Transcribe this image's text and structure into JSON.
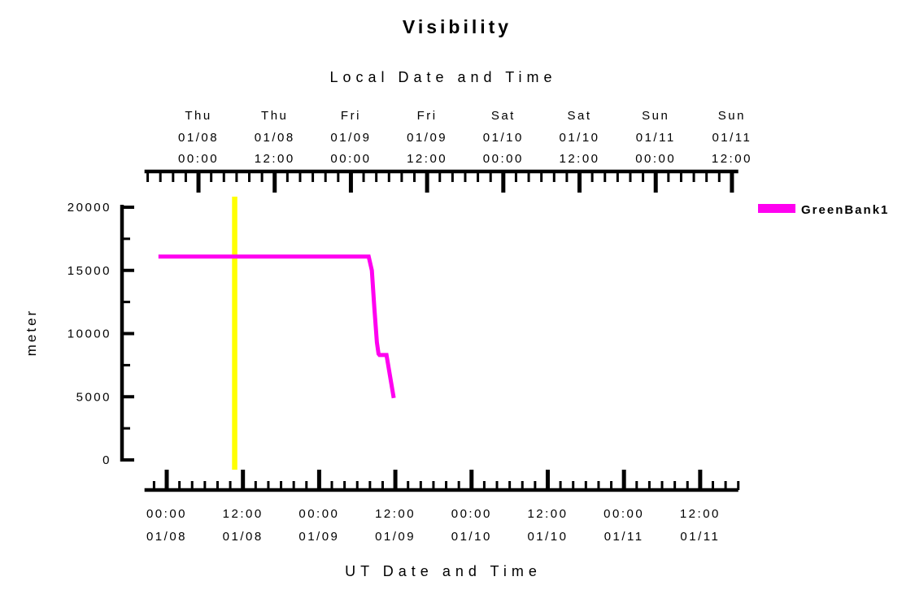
{
  "chart_data": {
    "type": "line",
    "title": "Visibility",
    "top_axis": {
      "label": "Local Date and Time",
      "utc_offset_hours": -5,
      "minor_step_hours": 2,
      "major_step_hours": 12,
      "major_ticks": [
        {
          "day": "Thu",
          "date": "01/08",
          "time": "00:00"
        },
        {
          "day": "Thu",
          "date": "01/08",
          "time": "12:00"
        },
        {
          "day": "Fri",
          "date": "01/09",
          "time": "00:00"
        },
        {
          "day": "Fri",
          "date": "01/09",
          "time": "12:00"
        },
        {
          "day": "Sat",
          "date": "01/10",
          "time": "00:00"
        },
        {
          "day": "Sat",
          "date": "01/10",
          "time": "12:00"
        },
        {
          "day": "Sun",
          "date": "01/11",
          "time": "00:00"
        },
        {
          "day": "Sun",
          "date": "01/11",
          "time": "12:00"
        }
      ]
    },
    "bottom_axis": {
      "label": "UT Date and Time",
      "minor_step_hours": 2,
      "major_step_hours": 12,
      "domain_hours_from_0108_0000_ut": [
        -3.5,
        90
      ],
      "major_ticks": [
        {
          "time": "00:00",
          "date": "01/08"
        },
        {
          "time": "12:00",
          "date": "01/08"
        },
        {
          "time": "00:00",
          "date": "01/09"
        },
        {
          "time": "12:00",
          "date": "01/09"
        },
        {
          "time": "00:00",
          "date": "01/10"
        },
        {
          "time": "12:00",
          "date": "01/10"
        },
        {
          "time": "00:00",
          "date": "01/11"
        },
        {
          "time": "12:00",
          "date": "01/11"
        }
      ]
    },
    "y_axis": {
      "label": "meter",
      "range": [
        0,
        20000
      ],
      "ticks": [
        "0",
        "5000",
        "10000",
        "15000",
        "20000"
      ],
      "tick_values": [
        0,
        5000,
        10000,
        15000,
        20000
      ],
      "minor_step": 2500
    },
    "series": [
      {
        "name": "GreenBank1",
        "color": "#FF00F0",
        "points_t_hours_vs_meters": [
          [
            -1.3,
            16093
          ],
          [
            31.8,
            16093
          ],
          [
            32.3,
            15000
          ],
          [
            32.7,
            12000
          ],
          [
            33.1,
            9300
          ],
          [
            33.35,
            8400
          ],
          [
            33.5,
            8300
          ],
          [
            34.6,
            8300
          ],
          [
            35.75,
            4900
          ]
        ]
      }
    ],
    "marker_line": {
      "color": "#FFFF00",
      "t_hours_ut": 10.7,
      "ut_time": "01/08 10:40"
    },
    "grid": "off",
    "legend_position": "right"
  }
}
